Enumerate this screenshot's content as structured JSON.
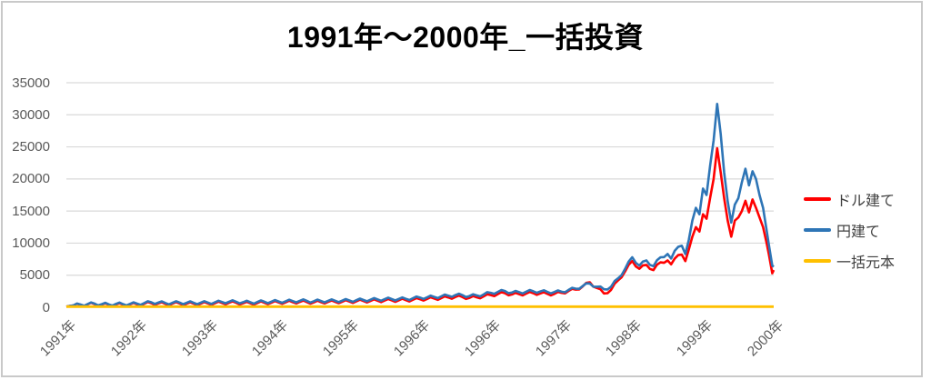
{
  "title": "1991年～2000年_一括投資",
  "colors": {
    "red": "#FF0000",
    "blue": "#2E75B6",
    "gold": "#FFC000",
    "gridline": "#D9D9D9",
    "axis_text": "#595959",
    "legend_text": "#404040",
    "border": "#C9C9C9",
    "background": "#FFFFFF"
  },
  "legend": {
    "position": "right",
    "items": [
      {
        "label": "ドル建て",
        "color": "#FF0000"
      },
      {
        "label": "円建て",
        "color": "#2E75B6"
      },
      {
        "label": "一括元本",
        "color": "#FFC000"
      }
    ]
  },
  "chart_data": {
    "type": "line",
    "title": "1991年～2000年_一括投資",
    "xlabel": "",
    "ylabel": "",
    "ylim": [
      0,
      35000
    ],
    "yticks": [
      0,
      5000,
      10000,
      15000,
      20000,
      25000,
      30000,
      35000
    ],
    "x_labels": [
      "1991年",
      "1992年",
      "1993年",
      "1994年",
      "1995年",
      "1996年",
      "1996年",
      "1997年",
      "1998年",
      "1999年",
      "2000年"
    ],
    "grid": "horizontal",
    "legend_position": "right",
    "x_is_percent_of_width": true,
    "series": [
      {
        "name": "ドル建て",
        "color": "#FF0000",
        "points": [
          [
            0,
            100
          ],
          [
            1,
            280
          ],
          [
            2,
            380
          ],
          [
            3,
            450
          ],
          [
            4,
            500
          ],
          [
            5,
            420
          ],
          [
            6,
            380
          ],
          [
            7,
            440
          ],
          [
            8,
            410
          ],
          [
            9,
            450
          ],
          [
            10,
            460
          ],
          [
            11,
            540
          ],
          [
            12,
            640
          ],
          [
            13,
            590
          ],
          [
            14,
            530
          ],
          [
            15,
            560
          ],
          [
            16,
            590
          ],
          [
            17,
            550
          ],
          [
            18,
            560
          ],
          [
            19,
            570
          ],
          [
            20,
            590
          ],
          [
            21,
            630
          ],
          [
            22,
            660
          ],
          [
            23,
            700
          ],
          [
            24,
            700
          ],
          [
            25,
            640
          ],
          [
            26,
            620
          ],
          [
            27,
            660
          ],
          [
            28,
            700
          ],
          [
            29,
            720
          ],
          [
            30,
            750
          ],
          [
            31,
            780
          ],
          [
            32,
            800
          ],
          [
            33,
            830
          ],
          [
            34,
            810
          ],
          [
            35,
            780
          ],
          [
            36,
            800
          ],
          [
            37,
            830
          ],
          [
            38,
            850
          ],
          [
            39,
            870
          ],
          [
            40,
            890
          ],
          [
            41,
            930
          ],
          [
            42,
            960
          ],
          [
            43,
            990
          ],
          [
            44,
            1020
          ],
          [
            45,
            1050
          ],
          [
            46,
            1070
          ],
          [
            47,
            1090
          ],
          [
            48,
            1110
          ],
          [
            49,
            1170
          ],
          [
            50,
            1250
          ],
          [
            51,
            1300
          ],
          [
            52,
            1360
          ],
          [
            53,
            1430
          ],
          [
            54,
            1530
          ],
          [
            55,
            1600
          ],
          [
            56,
            1580
          ],
          [
            57,
            1480
          ],
          [
            58,
            1560
          ],
          [
            59,
            1700
          ],
          [
            60,
            1900
          ],
          [
            61,
            2050
          ],
          [
            62,
            2200
          ],
          [
            63,
            2000
          ],
          [
            64,
            2050
          ],
          [
            65,
            2120
          ],
          [
            66,
            2200
          ],
          [
            67,
            2150
          ],
          [
            68,
            2100
          ],
          [
            69,
            2080
          ],
          [
            70,
            2250
          ],
          [
            71,
            2550
          ],
          [
            72,
            2750
          ],
          [
            73,
            3250
          ],
          [
            74,
            3900
          ],
          [
            75,
            3000
          ],
          [
            76,
            2150
          ],
          [
            77,
            2700
          ],
          [
            78,
            4200
          ],
          [
            79,
            5600
          ],
          [
            80,
            7200
          ],
          [
            81,
            6000
          ],
          [
            82,
            6600
          ],
          [
            83,
            5800
          ],
          [
            84,
            7000
          ],
          [
            85,
            7300
          ],
          [
            85.5,
            6700
          ],
          [
            86,
            7600
          ],
          [
            87,
            8200
          ],
          [
            87.5,
            7200
          ],
          [
            88,
            9000
          ],
          [
            88.5,
            11000
          ],
          [
            89,
            12500
          ],
          [
            89.5,
            11800
          ],
          [
            90,
            14500
          ],
          [
            90.5,
            13800
          ],
          [
            91,
            17000
          ],
          [
            91.5,
            20000
          ],
          [
            92,
            24800
          ],
          [
            92.5,
            21000
          ],
          [
            93,
            17000
          ],
          [
            93.5,
            13500
          ],
          [
            94,
            11000
          ],
          [
            94.5,
            13500
          ],
          [
            95,
            14000
          ],
          [
            95.5,
            15000
          ],
          [
            96,
            16600
          ],
          [
            96.5,
            14800
          ],
          [
            97,
            16800
          ],
          [
            97.5,
            15500
          ],
          [
            98,
            14000
          ],
          [
            98.5,
            12500
          ],
          [
            99,
            10000
          ],
          [
            99.3,
            8300
          ],
          [
            99.6,
            6500
          ],
          [
            99.8,
            5300
          ],
          [
            100,
            5800
          ]
        ]
      },
      {
        "name": "円建て",
        "color": "#2E75B6",
        "points": [
          [
            0,
            100
          ],
          [
            1,
            300
          ],
          [
            2,
            420
          ],
          [
            3,
            500
          ],
          [
            4,
            560
          ],
          [
            5,
            480
          ],
          [
            6,
            450
          ],
          [
            7,
            520
          ],
          [
            8,
            490
          ],
          [
            9,
            530
          ],
          [
            10,
            560
          ],
          [
            11,
            650
          ],
          [
            12,
            780
          ],
          [
            13,
            720
          ],
          [
            14,
            660
          ],
          [
            15,
            700
          ],
          [
            16,
            730
          ],
          [
            17,
            690
          ],
          [
            18,
            700
          ],
          [
            19,
            710
          ],
          [
            20,
            730
          ],
          [
            21,
            780
          ],
          [
            22,
            820
          ],
          [
            23,
            870
          ],
          [
            24,
            860
          ],
          [
            25,
            800
          ],
          [
            26,
            780
          ],
          [
            27,
            820
          ],
          [
            28,
            860
          ],
          [
            29,
            880
          ],
          [
            30,
            900
          ],
          [
            31,
            940
          ],
          [
            32,
            970
          ],
          [
            33,
            1010
          ],
          [
            34,
            990
          ],
          [
            35,
            950
          ],
          [
            36,
            980
          ],
          [
            37,
            1000
          ],
          [
            38,
            1020
          ],
          [
            39,
            1040
          ],
          [
            40,
            1060
          ],
          [
            41,
            1100
          ],
          [
            42,
            1140
          ],
          [
            43,
            1180
          ],
          [
            44,
            1220
          ],
          [
            45,
            1260
          ],
          [
            46,
            1280
          ],
          [
            47,
            1300
          ],
          [
            48,
            1320
          ],
          [
            49,
            1400
          ],
          [
            50,
            1500
          ],
          [
            51,
            1550
          ],
          [
            52,
            1620
          ],
          [
            53,
            1700
          ],
          [
            54,
            1820
          ],
          [
            55,
            1900
          ],
          [
            56,
            1880
          ],
          [
            57,
            1760
          ],
          [
            58,
            1850
          ],
          [
            59,
            2000
          ],
          [
            60,
            2250
          ],
          [
            61,
            2400
          ],
          [
            62,
            2540
          ],
          [
            63,
            2300
          ],
          [
            64,
            2350
          ],
          [
            65,
            2420
          ],
          [
            66,
            2500
          ],
          [
            67,
            2460
          ],
          [
            68,
            2400
          ],
          [
            69,
            2380
          ],
          [
            70,
            2420
          ],
          [
            71,
            2700
          ],
          [
            72,
            2900
          ],
          [
            73,
            3300
          ],
          [
            74,
            3700
          ],
          [
            75,
            3200
          ],
          [
            76,
            2800
          ],
          [
            77,
            3200
          ],
          [
            78,
            4500
          ],
          [
            79,
            6000
          ],
          [
            80,
            7800
          ],
          [
            81,
            6500
          ],
          [
            82,
            7300
          ],
          [
            83,
            6400
          ],
          [
            84,
            7800
          ],
          [
            85,
            8300
          ],
          [
            85.5,
            7600
          ],
          [
            86,
            8800
          ],
          [
            87,
            9600
          ],
          [
            87.5,
            8300
          ],
          [
            88,
            10500
          ],
          [
            88.5,
            13500
          ],
          [
            89,
            15500
          ],
          [
            89.5,
            14500
          ],
          [
            90,
            18500
          ],
          [
            90.5,
            17500
          ],
          [
            91,
            22000
          ],
          [
            91.5,
            26000
          ],
          [
            92,
            31700
          ],
          [
            92.5,
            27000
          ],
          [
            93,
            21000
          ],
          [
            93.5,
            16500
          ],
          [
            94,
            13200
          ],
          [
            94.5,
            16000
          ],
          [
            95,
            17000
          ],
          [
            95.5,
            19500
          ],
          [
            96,
            21600
          ],
          [
            96.5,
            19000
          ],
          [
            97,
            21200
          ],
          [
            97.5,
            20000
          ],
          [
            98,
            17500
          ],
          [
            98.5,
            15500
          ],
          [
            99,
            12000
          ],
          [
            99.3,
            9800
          ],
          [
            99.6,
            7800
          ],
          [
            99.8,
            6500
          ],
          [
            100,
            6300
          ]
        ]
      },
      {
        "name": "一括元本",
        "color": "#FFC000",
        "points": [
          [
            0,
            100
          ],
          [
            100,
            100
          ]
        ]
      }
    ]
  }
}
